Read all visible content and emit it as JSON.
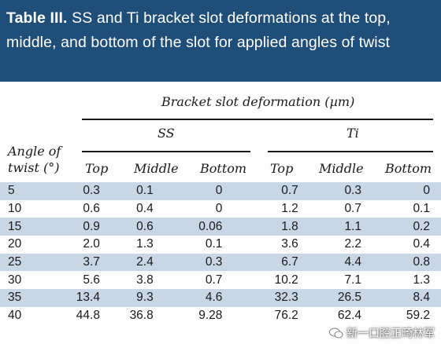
{
  "title": {
    "label": "Table III.",
    "text": " SS and Ti bracket slot deformations at the top, middle, and bottom of the slot for applied angles of twist"
  },
  "header": {
    "group": "Bracket slot deformation (µm)",
    "ss": "SS",
    "ti": "Ti",
    "angle_line1": "Angle of",
    "angle_line2": "twist (°)",
    "top": "Top",
    "middle": "Middle",
    "bottom": "Bottom"
  },
  "rows": [
    {
      "angle": "5",
      "ss_top": "0.3",
      "ss_mid": "0.1",
      "ss_bot": "0",
      "ti_top": "0.7",
      "ti_mid": "0.3",
      "ti_bot": "0"
    },
    {
      "angle": "10",
      "ss_top": "0.6",
      "ss_mid": "0.4",
      "ss_bot": "0",
      "ti_top": "1.2",
      "ti_mid": "0.7",
      "ti_bot": "0.1"
    },
    {
      "angle": "15",
      "ss_top": "0.9",
      "ss_mid": "0.6",
      "ss_bot": "0.06",
      "ti_top": "1.8",
      "ti_mid": "1.1",
      "ti_bot": "0.2"
    },
    {
      "angle": "20",
      "ss_top": "2.0",
      "ss_mid": "1.3",
      "ss_bot": "0.1",
      "ti_top": "3.6",
      "ti_mid": "2.2",
      "ti_bot": "0.4"
    },
    {
      "angle": "25",
      "ss_top": "3.7",
      "ss_mid": "2.4",
      "ss_bot": "0.3",
      "ti_top": "6.7",
      "ti_mid": "4.4",
      "ti_bot": "0.8"
    },
    {
      "angle": "30",
      "ss_top": "5.6",
      "ss_mid": "3.8",
      "ss_bot": "0.7",
      "ti_top": "10.2",
      "ti_mid": "7.1",
      "ti_bot": "1.3"
    },
    {
      "angle": "35",
      "ss_top": "13.4",
      "ss_mid": "9.3",
      "ss_bot": "4.6",
      "ti_top": "32.3",
      "ti_mid": "26.5",
      "ti_bot": "8.4"
    },
    {
      "angle": "40",
      "ss_top": "44.8",
      "ss_mid": "36.8",
      "ss_bot": "9.28",
      "ti_top": "76.2",
      "ti_mid": "62.4",
      "ti_bot": "59.2"
    }
  ],
  "watermark": "新一口腔正畸林军",
  "colors": {
    "title_bg": "#1f4e79",
    "row_shade": "#c9d6e6"
  }
}
